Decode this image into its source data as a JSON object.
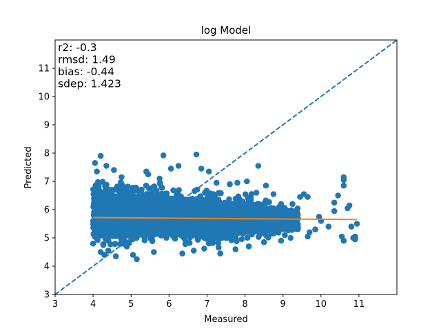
{
  "chart_data": {
    "type": "scatter",
    "title": "log Model",
    "xlabel": "Measured",
    "ylabel": "Predicted",
    "xlim": [
      3,
      12
    ],
    "ylim": [
      3,
      12
    ],
    "xticks": [
      3,
      4,
      5,
      6,
      7,
      8,
      9,
      10,
      11
    ],
    "yticks": [
      3,
      4,
      5,
      6,
      7,
      8,
      9,
      10,
      11
    ],
    "grid": false,
    "stats": [
      "r2: -0.3",
      "rmsd: 1.49",
      "bias: -0.44",
      "sdep: 1.423"
    ],
    "colors": {
      "points": "#1f77b4",
      "identity_line": "#1f77b4",
      "fit_line": "#ff7f0e"
    },
    "identity_line": {
      "from": [
        3,
        3
      ],
      "to": [
        12,
        12
      ],
      "style": "dashed"
    },
    "fit_line": {
      "x": [
        4.0,
        10.95
      ],
      "y": [
        5.72,
        5.65
      ]
    },
    "cloud": [
      {
        "x": 4.0,
        "lo": 4.75,
        "hi": 7.3
      },
      {
        "x": 4.5,
        "lo": 4.4,
        "hi": 7.2
      },
      {
        "x": 5.0,
        "lo": 4.45,
        "hi": 7.1
      },
      {
        "x": 5.5,
        "lo": 4.5,
        "hi": 7.2
      },
      {
        "x": 6.0,
        "lo": 4.55,
        "hi": 7.05
      },
      {
        "x": 6.5,
        "lo": 4.5,
        "hi": 7.0
      },
      {
        "x": 7.0,
        "lo": 4.45,
        "hi": 6.9
      },
      {
        "x": 7.5,
        "lo": 4.55,
        "hi": 6.8
      },
      {
        "x": 8.0,
        "lo": 4.7,
        "hi": 6.75
      },
      {
        "x": 8.5,
        "lo": 4.8,
        "hi": 6.55
      },
      {
        "x": 9.0,
        "lo": 4.95,
        "hi": 6.3
      },
      {
        "x": 9.4,
        "lo": 5.1,
        "hi": 6.15
      }
    ],
    "points": [
      [
        4.05,
        7.65
      ],
      [
        4.2,
        7.9
      ],
      [
        4.35,
        7.55
      ],
      [
        4.55,
        7.4
      ],
      [
        4.1,
        7.35
      ],
      [
        4.4,
        4.55
      ],
      [
        4.3,
        4.4
      ],
      [
        4.6,
        4.35
      ],
      [
        5.15,
        4.25
      ],
      [
        4.0,
        4.8
      ],
      [
        5.4,
        7.35
      ],
      [
        5.45,
        7.25
      ],
      [
        5.75,
        7.1
      ],
      [
        6.05,
        7.45
      ],
      [
        6.25,
        7.55
      ],
      [
        5.85,
        7.92
      ],
      [
        6.72,
        7.95
      ],
      [
        6.85,
        7.45
      ],
      [
        7.05,
        7.35
      ],
      [
        8.35,
        7.55
      ],
      [
        8.05,
        7.0
      ],
      [
        8.55,
        6.85
      ],
      [
        8.75,
        6.55
      ],
      [
        7.6,
        6.9
      ],
      [
        7.8,
        6.95
      ],
      [
        8.9,
        6.1
      ],
      [
        9.05,
        5.8
      ],
      [
        9.25,
        6.2
      ],
      [
        9.55,
        6.55
      ],
      [
        9.65,
        6.45
      ],
      [
        9.65,
        5.05
      ],
      [
        9.35,
        5.4
      ],
      [
        9.2,
        5.0
      ],
      [
        8.95,
        4.9
      ],
      [
        8.55,
        5.1
      ],
      [
        8.8,
        5.25
      ],
      [
        10.35,
        5.95
      ],
      [
        10.35,
        6.25
      ],
      [
        10.45,
        6.5
      ],
      [
        10.2,
        5.4
      ],
      [
        10.7,
        6.05
      ],
      [
        10.75,
        6.15
      ],
      [
        10.6,
        7.05
      ],
      [
        10.6,
        7.15
      ],
      [
        10.6,
        6.85
      ],
      [
        10.55,
        5.05
      ],
      [
        10.6,
        4.9
      ],
      [
        10.85,
        5.0
      ],
      [
        10.9,
        5.05
      ],
      [
        10.95,
        5.5
      ],
      [
        6.35,
        4.45
      ],
      [
        6.65,
        4.55
      ],
      [
        7.35,
        4.45
      ],
      [
        7.75,
        4.6
      ],
      [
        8.1,
        4.7
      ],
      [
        10.0,
        5.6
      ],
      [
        9.85,
        5.3
      ],
      [
        9.95,
        5.75
      ],
      [
        9.45,
        6.45
      ],
      [
        9.7,
        5.2
      ],
      [
        10.8,
        5.4
      ],
      [
        10.9,
        4.95
      ],
      [
        8.3,
        6.6
      ],
      [
        7.25,
        6.95
      ],
      [
        4.75,
        7.15
      ],
      [
        5.05,
        4.4
      ],
      [
        5.6,
        4.5
      ],
      [
        4.2,
        4.5
      ],
      [
        8.5,
        4.85
      ],
      [
        9.1,
        5.95
      ]
    ]
  }
}
